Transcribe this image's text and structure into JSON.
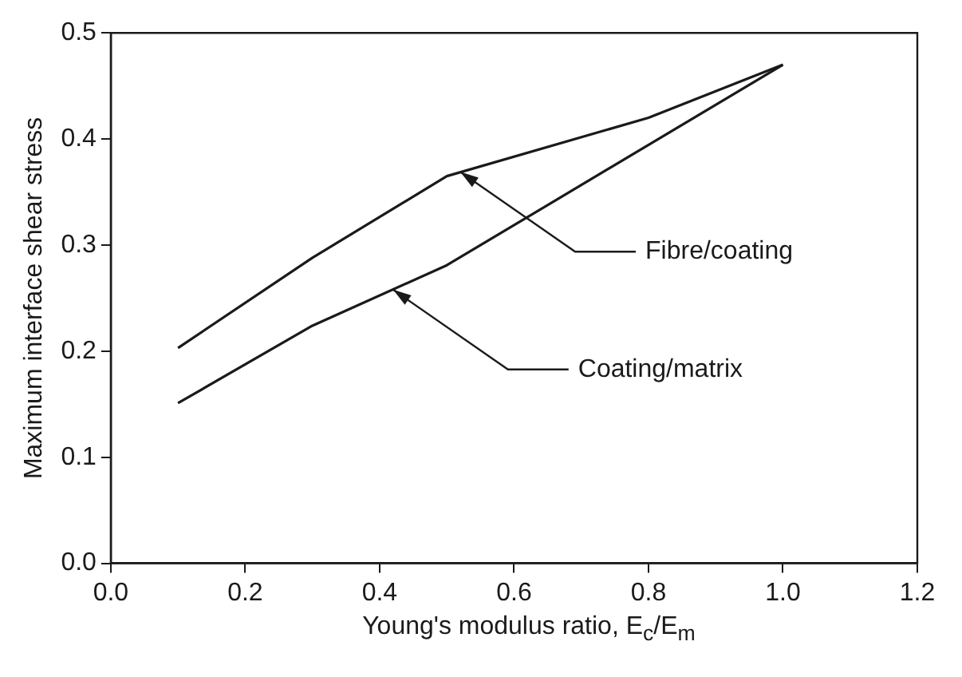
{
  "chart_data": {
    "type": "line",
    "xlabel": "Young's modulus ratio, E$_{c}$/E$_{m}$",
    "ylabel": "Maximum interface shear stress",
    "series": [
      {
        "x": [
          0.1,
          0.3,
          0.5,
          0.8,
          1.0
        ],
        "values": [
          0.203,
          0.288,
          0.365,
          0.42,
          0.47
        ],
        "color": "#1a1a1a"
      },
      {
        "x": [
          0.1,
          0.3,
          0.5,
          1.0
        ],
        "values": [
          0.151,
          0.224,
          0.281,
          0.47
        ],
        "color": "#1a1a1a"
      }
    ],
    "xlim": [
      0,
      1.2
    ],
    "xticks": [
      {
        "value": 0,
        "label": "0.0"
      },
      {
        "value": 0.2,
        "label": "0.2"
      },
      {
        "value": 0.4,
        "label": "0.4"
      },
      {
        "value": 0.6,
        "label": "0.6"
      },
      {
        "value": 0.8,
        "label": "0.8"
      },
      {
        "value": 1,
        "label": "1.0"
      },
      {
        "value": 1.2,
        "label": "1.2"
      }
    ],
    "ylim": [
      0,
      0.5
    ],
    "yticks": [
      {
        "value": 0,
        "label": "0.0"
      },
      {
        "value": 0.1,
        "label": "0.1"
      },
      {
        "value": 0.2,
        "label": "0.2"
      },
      {
        "value": 0.3,
        "label": "0.3"
      },
      {
        "value": 0.4,
        "label": "0.4"
      },
      {
        "value": 0.5,
        "label": "0.5"
      }
    ],
    "grid": false,
    "legend": false,
    "marker": "none",
    "line_style": "solid",
    "annotations": [
      {
        "text": "Fibre/coating",
        "x": 0.52,
        "y": 0.369
      },
      {
        "text": "Coating/matrix",
        "x": 0.42,
        "y": 0.258
      }
    ]
  }
}
